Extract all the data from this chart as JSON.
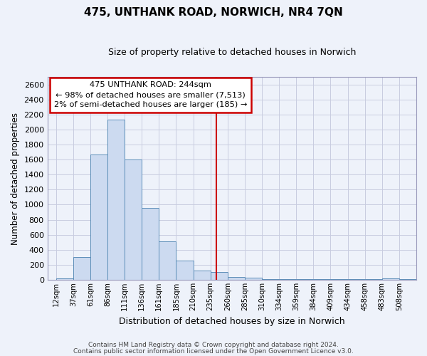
{
  "title": "475, UNTHANK ROAD, NORWICH, NR4 7QN",
  "subtitle": "Size of property relative to detached houses in Norwich",
  "xlabel": "Distribution of detached houses by size in Norwich",
  "ylabel": "Number of detached properties",
  "bin_labels": [
    "12sqm",
    "37sqm",
    "61sqm",
    "86sqm",
    "111sqm",
    "136sqm",
    "161sqm",
    "185sqm",
    "210sqm",
    "235sqm",
    "260sqm",
    "285sqm",
    "310sqm",
    "334sqm",
    "359sqm",
    "384sqm",
    "409sqm",
    "434sqm",
    "458sqm",
    "483sqm",
    "508sqm"
  ],
  "bar_heights": [
    20,
    300,
    1670,
    2130,
    1600,
    960,
    510,
    255,
    120,
    100,
    35,
    30,
    10,
    10,
    10,
    5,
    5,
    5,
    5,
    20,
    5
  ],
  "bar_color": "#ccdaf0",
  "bar_edge_color": "#5b8db8",
  "background_color": "#eef2fa",
  "grid_color": "#c8cce0",
  "annotation_box_text": "475 UNTHANK ROAD: 244sqm\n← 98% of detached houses are smaller (7,513)\n2% of semi-detached houses are larger (185) →",
  "annotation_box_color": "#ffffff",
  "annotation_box_edge_color": "#cc0000",
  "annotation_line_color": "#cc0000",
  "ylim": [
    0,
    2700
  ],
  "yticks": [
    0,
    200,
    400,
    600,
    800,
    1000,
    1200,
    1400,
    1600,
    1800,
    2000,
    2200,
    2400,
    2600
  ],
  "footer_line1": "Contains HM Land Registry data © Crown copyright and database right 2024.",
  "footer_line2": "Contains public sector information licensed under the Open Government Licence v3.0.",
  "property_sqm": 244,
  "bin_starts": [
    12,
    37,
    61,
    86,
    111,
    136,
    161,
    185,
    210,
    235,
    260,
    285,
    310,
    334,
    359,
    384,
    409,
    434,
    458,
    483,
    508
  ]
}
